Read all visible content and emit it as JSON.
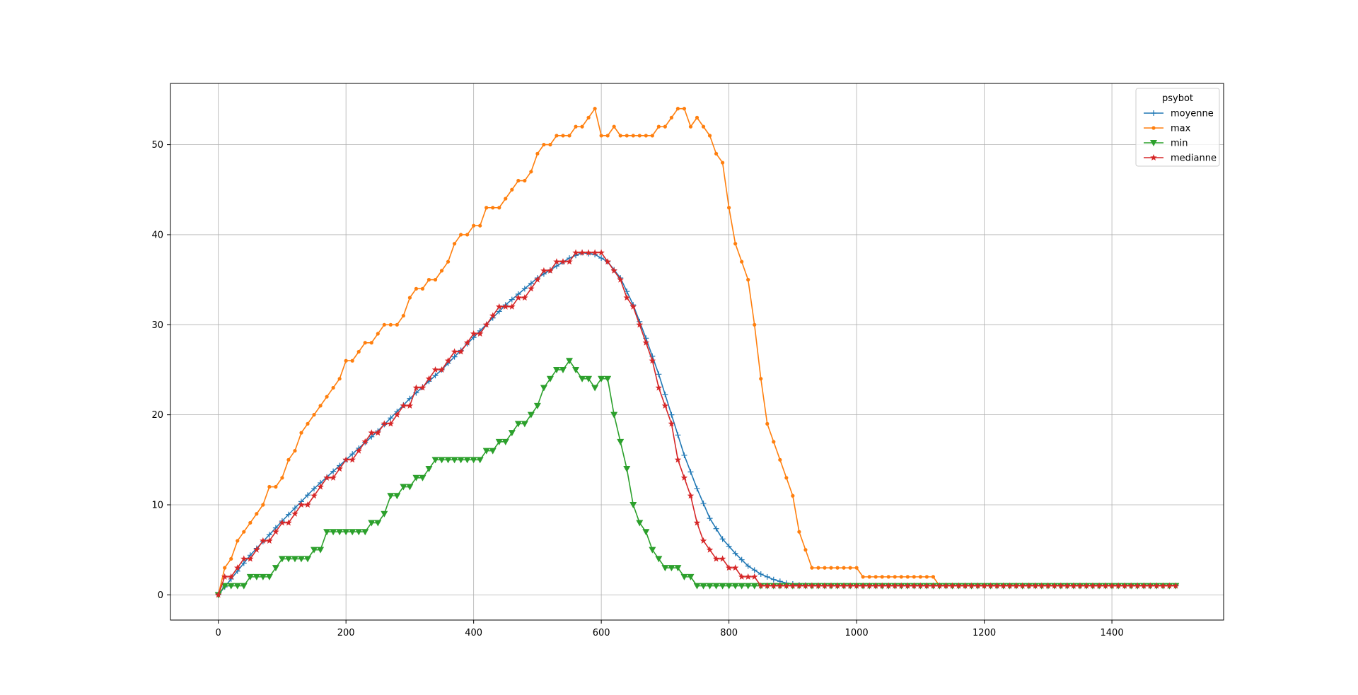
{
  "chart_data": {
    "type": "line",
    "title": "",
    "xlabel": "",
    "ylabel": "",
    "xlim": [
      -75,
      1575
    ],
    "ylim": [
      -2.8,
      56.8
    ],
    "xticks": [
      0,
      200,
      400,
      600,
      800,
      1000,
      1200,
      1400
    ],
    "yticks": [
      0,
      10,
      20,
      30,
      40,
      50
    ],
    "grid": true,
    "legend": {
      "title": "psybot",
      "position": "top-right"
    },
    "x_step": 10,
    "series": [
      {
        "name": "moyenne",
        "color": "#1f77b4",
        "marker": "plus",
        "points": [
          [
            0,
            0
          ],
          [
            50,
            4.4
          ],
          [
            100,
            8.2
          ],
          [
            150,
            11.8
          ],
          [
            200,
            15
          ],
          [
            250,
            18.2
          ],
          [
            300,
            21.8
          ],
          [
            350,
            25
          ],
          [
            400,
            28.6
          ],
          [
            450,
            32.2
          ],
          [
            500,
            35.2
          ],
          [
            550,
            37.4
          ],
          [
            570,
            38
          ],
          [
            590,
            37.8
          ],
          [
            610,
            37
          ],
          [
            630,
            35.2
          ],
          [
            650,
            32.2
          ],
          [
            670,
            28.5
          ],
          [
            690,
            24.5
          ],
          [
            710,
            20
          ],
          [
            730,
            15.5
          ],
          [
            750,
            11.8
          ],
          [
            770,
            8.5
          ],
          [
            790,
            6.2
          ],
          [
            810,
            4.6
          ],
          [
            830,
            3.2
          ],
          [
            850,
            2.3
          ],
          [
            870,
            1.7
          ],
          [
            890,
            1.3
          ],
          [
            910,
            1.1
          ],
          [
            930,
            1.03
          ],
          [
            960,
            1
          ],
          [
            1500,
            1
          ]
        ]
      },
      {
        "name": "max",
        "color": "#ff7f0e",
        "marker": "dot",
        "points": [
          [
            0,
            0
          ],
          [
            10,
            3
          ],
          [
            20,
            4
          ],
          [
            30,
            6
          ],
          [
            40,
            7
          ],
          [
            50,
            8
          ],
          [
            60,
            9
          ],
          [
            70,
            10
          ],
          [
            80,
            12
          ],
          [
            90,
            12
          ],
          [
            100,
            13
          ],
          [
            110,
            15
          ],
          [
            120,
            16
          ],
          [
            130,
            18
          ],
          [
            140,
            19
          ],
          [
            150,
            20
          ],
          [
            160,
            21
          ],
          [
            170,
            22
          ],
          [
            180,
            23
          ],
          [
            190,
            24
          ],
          [
            200,
            26
          ],
          [
            210,
            26
          ],
          [
            220,
            27
          ],
          [
            230,
            28
          ],
          [
            240,
            28
          ],
          [
            250,
            29
          ],
          [
            260,
            30
          ],
          [
            270,
            30
          ],
          [
            280,
            30
          ],
          [
            290,
            31
          ],
          [
            300,
            33
          ],
          [
            310,
            34
          ],
          [
            320,
            34
          ],
          [
            330,
            35
          ],
          [
            340,
            35
          ],
          [
            350,
            36
          ],
          [
            360,
            37
          ],
          [
            370,
            39
          ],
          [
            380,
            40
          ],
          [
            390,
            40
          ],
          [
            400,
            41
          ],
          [
            410,
            41
          ],
          [
            420,
            43
          ],
          [
            430,
            43
          ],
          [
            440,
            43
          ],
          [
            450,
            44
          ],
          [
            460,
            45
          ],
          [
            470,
            46
          ],
          [
            480,
            46
          ],
          [
            490,
            47
          ],
          [
            500,
            49
          ],
          [
            510,
            50
          ],
          [
            520,
            50
          ],
          [
            530,
            51
          ],
          [
            540,
            51
          ],
          [
            550,
            51
          ],
          [
            560,
            52
          ],
          [
            570,
            52
          ],
          [
            580,
            53
          ],
          [
            590,
            54
          ],
          [
            600,
            51
          ],
          [
            610,
            51
          ],
          [
            620,
            52
          ],
          [
            630,
            51
          ],
          [
            640,
            51
          ],
          [
            650,
            51
          ],
          [
            660,
            51
          ],
          [
            670,
            51
          ],
          [
            680,
            51
          ],
          [
            690,
            52
          ],
          [
            700,
            52
          ],
          [
            710,
            53
          ],
          [
            720,
            54
          ],
          [
            730,
            54
          ],
          [
            740,
            52
          ],
          [
            750,
            53
          ],
          [
            760,
            52
          ],
          [
            770,
            51
          ],
          [
            780,
            49
          ],
          [
            790,
            48
          ],
          [
            800,
            43
          ],
          [
            810,
            39
          ],
          [
            820,
            37
          ],
          [
            830,
            35
          ],
          [
            840,
            30
          ],
          [
            850,
            24
          ],
          [
            860,
            19
          ],
          [
            870,
            17
          ],
          [
            880,
            15
          ],
          [
            890,
            13
          ],
          [
            900,
            11
          ],
          [
            910,
            7
          ],
          [
            920,
            5
          ],
          [
            930,
            3
          ],
          [
            940,
            3
          ],
          [
            950,
            3
          ],
          [
            960,
            3
          ],
          [
            970,
            3
          ],
          [
            980,
            3
          ],
          [
            990,
            3
          ],
          [
            1000,
            3
          ],
          [
            1010,
            2
          ],
          [
            1020,
            2
          ],
          [
            1030,
            2
          ],
          [
            1040,
            2
          ],
          [
            1050,
            2
          ],
          [
            1060,
            2
          ],
          [
            1070,
            2
          ],
          [
            1080,
            2
          ],
          [
            1090,
            2
          ],
          [
            1100,
            2
          ],
          [
            1110,
            2
          ],
          [
            1120,
            2
          ],
          [
            1130,
            1
          ],
          [
            1500,
            1
          ]
        ]
      },
      {
        "name": "min",
        "color": "#2ca02c",
        "marker": "triangle-down",
        "points": [
          [
            0,
            0
          ],
          [
            10,
            1
          ],
          [
            20,
            1
          ],
          [
            30,
            1
          ],
          [
            40,
            1
          ],
          [
            50,
            2
          ],
          [
            60,
            2
          ],
          [
            70,
            2
          ],
          [
            80,
            2
          ],
          [
            90,
            3
          ],
          [
            100,
            4
          ],
          [
            110,
            4
          ],
          [
            120,
            4
          ],
          [
            130,
            4
          ],
          [
            140,
            4
          ],
          [
            150,
            5
          ],
          [
            160,
            5
          ],
          [
            170,
            7
          ],
          [
            180,
            7
          ],
          [
            190,
            7
          ],
          [
            200,
            7
          ],
          [
            210,
            7
          ],
          [
            220,
            7
          ],
          [
            230,
            7
          ],
          [
            240,
            8
          ],
          [
            250,
            8
          ],
          [
            260,
            9
          ],
          [
            270,
            11
          ],
          [
            280,
            11
          ],
          [
            290,
            12
          ],
          [
            300,
            12
          ],
          [
            310,
            13
          ],
          [
            320,
            13
          ],
          [
            330,
            14
          ],
          [
            340,
            15
          ],
          [
            350,
            15
          ],
          [
            360,
            15
          ],
          [
            370,
            15
          ],
          [
            380,
            15
          ],
          [
            390,
            15
          ],
          [
            400,
            15
          ],
          [
            410,
            15
          ],
          [
            420,
            16
          ],
          [
            430,
            16
          ],
          [
            440,
            17
          ],
          [
            450,
            17
          ],
          [
            460,
            18
          ],
          [
            470,
            19
          ],
          [
            480,
            19
          ],
          [
            490,
            20
          ],
          [
            500,
            21
          ],
          [
            510,
            23
          ],
          [
            520,
            24
          ],
          [
            530,
            25
          ],
          [
            540,
            25
          ],
          [
            550,
            26
          ],
          [
            560,
            25
          ],
          [
            570,
            24
          ],
          [
            580,
            24
          ],
          [
            590,
            23
          ],
          [
            600,
            24
          ],
          [
            610,
            24
          ],
          [
            620,
            20
          ],
          [
            630,
            17
          ],
          [
            640,
            14
          ],
          [
            650,
            10
          ],
          [
            660,
            8
          ],
          [
            670,
            7
          ],
          [
            680,
            5
          ],
          [
            690,
            4
          ],
          [
            700,
            3
          ],
          [
            710,
            3
          ],
          [
            720,
            3
          ],
          [
            730,
            2
          ],
          [
            740,
            2
          ],
          [
            750,
            1
          ],
          [
            1500,
            1
          ]
        ]
      },
      {
        "name": "medianne",
        "color": "#d62728",
        "marker": "star",
        "points": [
          [
            0,
            0
          ],
          [
            10,
            2
          ],
          [
            20,
            2
          ],
          [
            30,
            3
          ],
          [
            40,
            4
          ],
          [
            50,
            4
          ],
          [
            60,
            5
          ],
          [
            70,
            6
          ],
          [
            80,
            6
          ],
          [
            90,
            7
          ],
          [
            100,
            8
          ],
          [
            110,
            8
          ],
          [
            120,
            9
          ],
          [
            130,
            10
          ],
          [
            140,
            10
          ],
          [
            150,
            11
          ],
          [
            160,
            12
          ],
          [
            170,
            13
          ],
          [
            180,
            13
          ],
          [
            190,
            14
          ],
          [
            200,
            15
          ],
          [
            210,
            15
          ],
          [
            220,
            16
          ],
          [
            230,
            17
          ],
          [
            240,
            18
          ],
          [
            250,
            18
          ],
          [
            260,
            19
          ],
          [
            270,
            19
          ],
          [
            280,
            20
          ],
          [
            290,
            21
          ],
          [
            300,
            21
          ],
          [
            310,
            23
          ],
          [
            320,
            23
          ],
          [
            330,
            24
          ],
          [
            340,
            25
          ],
          [
            350,
            25
          ],
          [
            360,
            26
          ],
          [
            370,
            27
          ],
          [
            380,
            27
          ],
          [
            390,
            28
          ],
          [
            400,
            29
          ],
          [
            410,
            29
          ],
          [
            420,
            30
          ],
          [
            430,
            31
          ],
          [
            440,
            32
          ],
          [
            450,
            32
          ],
          [
            460,
            32
          ],
          [
            470,
            33
          ],
          [
            480,
            33
          ],
          [
            490,
            34
          ],
          [
            500,
            35
          ],
          [
            510,
            36
          ],
          [
            520,
            36
          ],
          [
            530,
            37
          ],
          [
            540,
            37
          ],
          [
            550,
            37
          ],
          [
            560,
            38
          ],
          [
            570,
            38
          ],
          [
            580,
            38
          ],
          [
            590,
            38
          ],
          [
            600,
            38
          ],
          [
            610,
            37
          ],
          [
            620,
            36
          ],
          [
            630,
            35
          ],
          [
            640,
            33
          ],
          [
            650,
            32
          ],
          [
            660,
            30
          ],
          [
            670,
            28
          ],
          [
            680,
            26
          ],
          [
            690,
            23
          ],
          [
            700,
            21
          ],
          [
            710,
            19
          ],
          [
            720,
            15
          ],
          [
            730,
            13
          ],
          [
            740,
            11
          ],
          [
            750,
            8
          ],
          [
            760,
            6
          ],
          [
            770,
            5
          ],
          [
            780,
            4
          ],
          [
            790,
            4
          ],
          [
            800,
            3
          ],
          [
            810,
            3
          ],
          [
            820,
            2
          ],
          [
            830,
            2
          ],
          [
            840,
            2
          ],
          [
            850,
            1
          ],
          [
            1500,
            1
          ]
        ]
      }
    ]
  }
}
